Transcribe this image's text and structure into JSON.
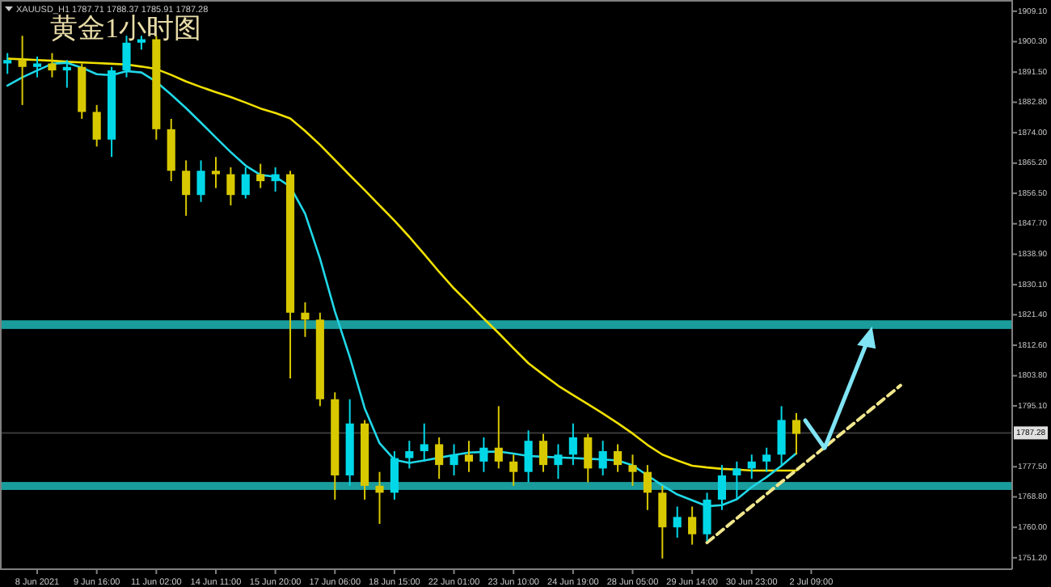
{
  "chart_data": {
    "type": "candlestick",
    "title": "黄金1小时图",
    "annotations": [
      "XAUUSD_H1  1787.71 1788.37 1785.91 1787.28"
    ],
    "categories": [
      null,
      null,
      "8 Jun 2021",
      null,
      null,
      null,
      "9 Jun 16:00",
      null,
      null,
      null,
      "11 Jun 02:00",
      null,
      null,
      null,
      "14 Jun 11:00",
      null,
      null,
      null,
      "15 Jun 20:00",
      null,
      null,
      null,
      "17 Jun 06:00",
      null,
      null,
      null,
      "18 Jun 15:00",
      null,
      null,
      null,
      "22 Jun 01:00",
      null,
      null,
      null,
      "23 Jun 10:00",
      null,
      null,
      null,
      "24 Jun 19:00",
      null,
      null,
      null,
      "28 Jun 05:00",
      null,
      null,
      null,
      "29 Jun 14:00",
      null,
      null,
      null,
      "30 Jun 23:00",
      null,
      null,
      null,
      "2 Jul 09:00",
      null,
      null,
      null,
      null,
      null,
      null,
      null,
      null,
      null,
      null,
      null,
      null,
      null
    ],
    "ohlc": [
      [
        1894,
        1897,
        1891,
        1895
      ],
      [
        1895,
        1902,
        1882,
        1893
      ],
      [
        1893,
        1896,
        1890,
        1894
      ],
      [
        1894,
        1897,
        1890,
        1892
      ],
      [
        1892,
        1895,
        1887,
        1893
      ],
      [
        1893,
        1894,
        1878,
        1880
      ],
      [
        1880,
        1882,
        1870,
        1872
      ],
      [
        1872,
        1893,
        1867,
        1892
      ],
      [
        1892,
        1902,
        1890,
        1900
      ],
      [
        1900,
        1902,
        1898,
        1901
      ],
      [
        1901,
        1902,
        1872,
        1875
      ],
      [
        1875,
        1878,
        1860,
        1863
      ],
      [
        1863,
        1866,
        1850,
        1856
      ],
      [
        1856,
        1866,
        1854,
        1863
      ],
      [
        1863,
        1867,
        1858,
        1862
      ],
      [
        1862,
        1864,
        1853,
        1856
      ],
      [
        1856,
        1864,
        1855,
        1862
      ],
      [
        1862,
        1865,
        1858,
        1860
      ],
      [
        1860,
        1864,
        1857,
        1862
      ],
      [
        1862,
        1863,
        1803,
        1822
      ],
      [
        1822,
        1825,
        1815,
        1820
      ],
      [
        1820,
        1822,
        1795,
        1797
      ],
      [
        1797,
        1799,
        1768,
        1775
      ],
      [
        1775,
        1797,
        1772,
        1790
      ],
      [
        1790,
        1791,
        1768,
        1772
      ],
      [
        1772,
        1776,
        1761,
        1770
      ],
      [
        1770,
        1782,
        1768,
        1780
      ],
      [
        1780,
        1785,
        1777,
        1782
      ],
      [
        1782,
        1790,
        1779,
        1784
      ],
      [
        1784,
        1786,
        1774,
        1778
      ],
      [
        1778,
        1784,
        1775,
        1781
      ],
      [
        1781,
        1785,
        1776,
        1779
      ],
      [
        1779,
        1786,
        1776,
        1783
      ],
      [
        1783,
        1795,
        1777,
        1779
      ],
      [
        1779,
        1781,
        1772,
        1776
      ],
      [
        1776,
        1788,
        1773,
        1785
      ],
      [
        1785,
        1787,
        1776,
        1778
      ],
      [
        1778,
        1784,
        1774,
        1781
      ],
      [
        1781,
        1790,
        1778,
        1786
      ],
      [
        1786,
        1787,
        1773,
        1777
      ],
      [
        1777,
        1785,
        1775,
        1782
      ],
      [
        1782,
        1784,
        1776,
        1778
      ],
      [
        1778,
        1781,
        1772,
        1776
      ],
      [
        1776,
        1778,
        1765,
        1770
      ],
      [
        1770,
        1772,
        1751,
        1760
      ],
      [
        1760,
        1766,
        1757,
        1763
      ],
      [
        1763,
        1766,
        1755,
        1758
      ],
      [
        1758,
        1770,
        1756,
        1768
      ],
      [
        1768,
        1778,
        1765,
        1775
      ],
      [
        1775,
        1779,
        1768,
        1777
      ],
      [
        1777,
        1781,
        1774,
        1779
      ],
      [
        1779,
        1783,
        1776,
        1781
      ],
      [
        1781,
        1795,
        1778,
        1791
      ],
      [
        1791,
        1793,
        1781,
        1787
      ],
      null,
      null,
      null,
      null,
      null,
      null,
      null,
      null,
      null,
      null,
      null,
      null,
      null,
      null
    ],
    "colors": [
      "#00d8e8",
      "#d8c800",
      "#00d8e8",
      "#d8c800",
      "#00d8e8",
      "#d8c800",
      "#d8c800",
      "#00d8e8",
      "#00d8e8",
      "#00d8e8",
      "#d8c800",
      "#d8c800",
      "#d8c800",
      "#00d8e8",
      "#d8c800",
      "#d8c800",
      "#00d8e8",
      "#d8c800",
      "#00d8e8",
      "#d8c800",
      "#d8c800",
      "#d8c800",
      "#d8c800",
      "#00d8e8",
      "#d8c800",
      "#d8c800",
      "#00d8e8",
      "#00d8e8",
      "#00d8e8",
      "#d8c800",
      "#00d8e8",
      "#d8c800",
      "#00d8e8",
      "#d8c800",
      "#d8c800",
      "#00d8e8",
      "#d8c800",
      "#00d8e8",
      "#00d8e8",
      "#d8c800",
      "#00d8e8",
      "#d8c800",
      "#d8c800",
      "#d8c800",
      "#d8c800",
      "#00d8e8",
      "#d8c800",
      "#00d8e8",
      "#00d8e8",
      "#00d8e8",
      "#00d8e8",
      "#00d8e8",
      "#00d8e8",
      "#d8c800",
      null,
      null,
      null,
      null,
      null,
      null,
      null,
      null,
      null,
      null,
      null,
      null,
      null,
      null
    ],
    "series": [
      {
        "type": "line",
        "color": "#f0e000",
        "values": [
          1895.4,
          1895.2,
          1895.0,
          1894.8,
          1894.5,
          1894.3,
          1894.1,
          1893.9,
          1893.7,
          1893.1,
          1892.4,
          1890.7,
          1888.8,
          1887.2,
          1885.7,
          1884.3,
          1882.7,
          1881.0,
          1879.7,
          1878.1,
          1874.5,
          1870.5,
          1866.1,
          1861.7,
          1857.4,
          1853.0,
          1848.6,
          1843.9,
          1838.9,
          1833.8,
          1829.0,
          1824.7,
          1820.3,
          1816.1,
          1811.7,
          1807.4,
          1804.1,
          1800.9,
          1798.2,
          1795.6,
          1792.9,
          1790.1,
          1787.1,
          1783.8,
          1781.0,
          1779.3,
          1777.8,
          1777.3,
          1776.9,
          1776.7,
          1776.4,
          1776.4,
          1776.4,
          1776.4,
          null,
          null,
          null,
          null,
          null,
          null,
          null,
          null,
          null,
          null,
          null,
          null,
          null,
          null
        ]
      },
      {
        "type": "line",
        "color": "#20d8e8",
        "values": [
          1887.6,
          1890.0,
          1892.0,
          1893.9,
          1894.2,
          1892.8,
          1890.9,
          1890.6,
          1891.8,
          1891.4,
          1888.7,
          1885.0,
          1881.1,
          1876.9,
          1872.6,
          1868.4,
          1864.5,
          1861.8,
          1861.3,
          1858.4,
          1850.6,
          1837.6,
          1822.4,
          1809.2,
          1794.4,
          1784.3,
          1779.5,
          1778.6,
          1779.3,
          1780.1,
          1780.9,
          1781.6,
          1781.8,
          1781.9,
          1781.3,
          1780.6,
          1780.4,
          1780.2,
          1780.0,
          1779.8,
          1779.6,
          1779.3,
          1777.9,
          1775.0,
          1772.1,
          1769.5,
          1767.8,
          1766.1,
          1766.4,
          1768.1,
          1771.6,
          1774.5,
          1777.8,
          1781.4,
          null,
          null,
          null,
          null,
          null,
          null,
          null,
          null,
          null,
          null,
          null,
          null,
          null,
          null
        ]
      },
      {
        "type": "line",
        "color": "#f0e68c",
        "line_style": "dashed",
        "values": [
          null,
          null,
          null,
          null,
          null,
          null,
          null,
          null,
          null,
          null,
          null,
          null,
          null,
          null,
          null,
          null,
          null,
          null,
          null,
          null,
          null,
          null,
          null,
          null,
          null,
          null,
          null,
          null,
          null,
          null,
          null,
          null,
          null,
          null,
          null,
          null,
          null,
          null,
          null,
          null,
          null,
          null,
          null,
          null,
          null,
          null,
          null,
          1755.6,
          1759.1,
          1762.6,
          1766.1,
          1769.6,
          1773.1,
          1776.5,
          1780.0,
          1783.5,
          1787.0,
          1790.5,
          1794.0,
          1797.5,
          1801.0,
          null,
          null,
          null,
          null,
          null,
          null,
          null
        ]
      }
    ],
    "bands": [
      {
        "axis": "y",
        "from": 1817.3,
        "to": 1819.8,
        "color": "#1a9c9c"
      },
      {
        "axis": "y",
        "from": 1770.8,
        "to": 1773.1,
        "color": "#1a9c9c"
      }
    ],
    "ref_lines": [
      {
        "axis": "y",
        "value": 1787.28,
        "label": "1787.28",
        "color": "#3a3a3a"
      }
    ],
    "ylim": [
      1747.9,
      1911.4
    ],
    "yticks": [
      {
        "value": 1909.1,
        "label": "1909.10"
      },
      {
        "value": 1900.3,
        "label": "1900.30"
      },
      {
        "value": 1891.5,
        "label": "1891.50"
      },
      {
        "value": 1882.8,
        "label": "1882.80"
      },
      {
        "value": 1874.0,
        "label": "1874.00"
      },
      {
        "value": 1865.2,
        "label": "1865.20"
      },
      {
        "value": 1856.5,
        "label": "1856.50"
      },
      {
        "value": 1847.7,
        "label": "1847.70"
      },
      {
        "value": 1838.9,
        "label": "1838.90"
      },
      {
        "value": 1830.1,
        "label": "1830.10"
      },
      {
        "value": 1821.4,
        "label": "1821.40"
      },
      {
        "value": 1812.6,
        "label": "1812.60"
      },
      {
        "value": 1803.8,
        "label": "1803.80"
      },
      {
        "value": 1795.1,
        "label": "1795.10"
      },
      {
        "value": 1777.5,
        "label": "1777.50"
      },
      {
        "value": 1768.8,
        "label": "1768.80"
      },
      {
        "value": 1760.0,
        "label": "1760.00"
      },
      {
        "value": 1751.2,
        "label": "1751.20"
      }
    ]
  }
}
